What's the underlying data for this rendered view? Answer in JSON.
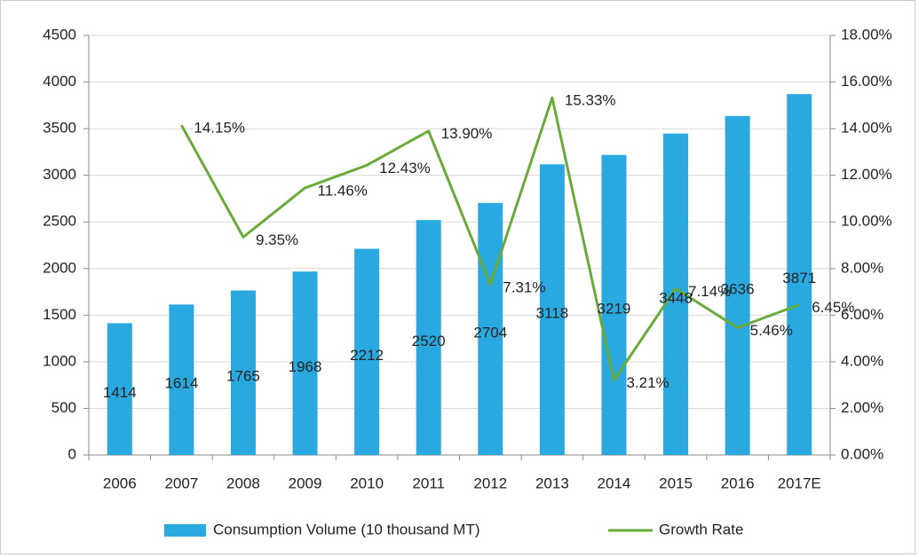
{
  "chart_data": {
    "type": "bar",
    "categories": [
      "2006",
      "2007",
      "2008",
      "2009",
      "2010",
      "2011",
      "2012",
      "2013",
      "2014",
      "2015",
      "2016",
      "2017E"
    ],
    "series": [
      {
        "name": "Consumption Volume (10 thousand MT)",
        "color": "#29a9e0",
        "type": "bar",
        "values": [
          1414,
          1614,
          1765,
          1968,
          2212,
          2520,
          2704,
          3118,
          3219,
          3448,
          3636,
          3871
        ]
      },
      {
        "name": "Growth Rate",
        "color": "#6aaa3a",
        "type": "line",
        "axis": "y2",
        "values": [
          null,
          14.15,
          9.35,
          11.46,
          12.43,
          13.9,
          7.31,
          15.33,
          3.21,
          7.14,
          5.46,
          6.45
        ],
        "value_labels": [
          null,
          "14.15%",
          "9.35%",
          "11.46%",
          "12.43%",
          "13.90%",
          "7.31%",
          "15.33%",
          "3.21%",
          "7.14%",
          "5.46%",
          "6.45%"
        ]
      }
    ],
    "ylim": [
      0,
      4500
    ],
    "yticks": [
      0,
      500,
      1000,
      1500,
      2000,
      2500,
      3000,
      3500,
      4000,
      4500
    ],
    "y2lim": [
      0,
      18
    ],
    "y2ticks": [
      {
        "value": 0,
        "label": "0.00%"
      },
      {
        "value": 2,
        "label": "2.00%"
      },
      {
        "value": 4,
        "label": "4.00%"
      },
      {
        "value": 6,
        "label": "6.00%"
      },
      {
        "value": 8,
        "label": "8.00%"
      },
      {
        "value": 10,
        "label": "10.00%"
      },
      {
        "value": 12,
        "label": "12.00%"
      },
      {
        "value": 14,
        "label": "14.00%"
      },
      {
        "value": 16,
        "label": "16.00%"
      },
      {
        "value": 18,
        "label": "18.00%"
      }
    ],
    "grid": true,
    "legend": "bottom"
  }
}
